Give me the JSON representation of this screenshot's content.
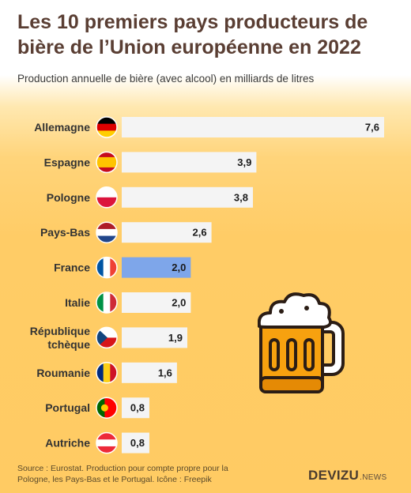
{
  "header": {
    "title": "Les 10 premiers pays producteurs de bière de l’Union européenne en 2022",
    "subtitle": "Production annuelle de bière (avec alcool) en milliards de litres"
  },
  "footer": {
    "source": "Source : Eurostat. Production pour compte propre pour la Pologne, les Pays-Bas et le Portugal. Icône : Freepik",
    "logo_main": "DEVIZU",
    "logo_suffix": ".NEWS"
  },
  "colors": {
    "bar_default": "#f4f4f4",
    "bar_highlight": "#7ea6ea",
    "title": "#5a3e33",
    "background_accent": "#ffcc66"
  },
  "chart_data": {
    "type": "bar",
    "orientation": "horizontal",
    "title": "Les 10 premiers pays producteurs de bière de l’Union européenne en 2022",
    "subtitle": "Production annuelle de bière (avec alcool) en milliards de litres",
    "categories": [
      "Allemagne",
      "Espagne",
      "Pologne",
      "Pays-Bas",
      "France",
      "Italie",
      "République tchèque",
      "Roumanie",
      "Portugal",
      "Autriche"
    ],
    "category_label_lines": [
      [
        "Allemagne"
      ],
      [
        "Espagne"
      ],
      [
        "Pologne"
      ],
      [
        "Pays-Bas"
      ],
      [
        "France"
      ],
      [
        "Italie"
      ],
      [
        "République",
        "tchèque"
      ],
      [
        "Roumanie"
      ],
      [
        "Portugal"
      ],
      [
        "Autriche"
      ]
    ],
    "values": [
      7.6,
      3.9,
      3.8,
      2.6,
      2.0,
      2.0,
      1.9,
      1.6,
      0.8,
      0.8
    ],
    "value_labels": [
      "7,6",
      "3,9",
      "3,8",
      "2,6",
      "2,0",
      "2,0",
      "1,9",
      "1,6",
      "0,8",
      "0,8"
    ],
    "highlighted": [
      "France"
    ],
    "flag_icons": [
      "germany-flag-icon",
      "spain-flag-icon",
      "poland-flag-icon",
      "netherlands-flag-icon",
      "france-flag-icon",
      "italy-flag-icon",
      "czechia-flag-icon",
      "romania-flag-icon",
      "portugal-flag-icon",
      "austria-flag-icon"
    ],
    "xlim": [
      0,
      7.6
    ],
    "grid": false,
    "legend": "none"
  },
  "decoration": {
    "icon": "beer-mug-icon"
  }
}
